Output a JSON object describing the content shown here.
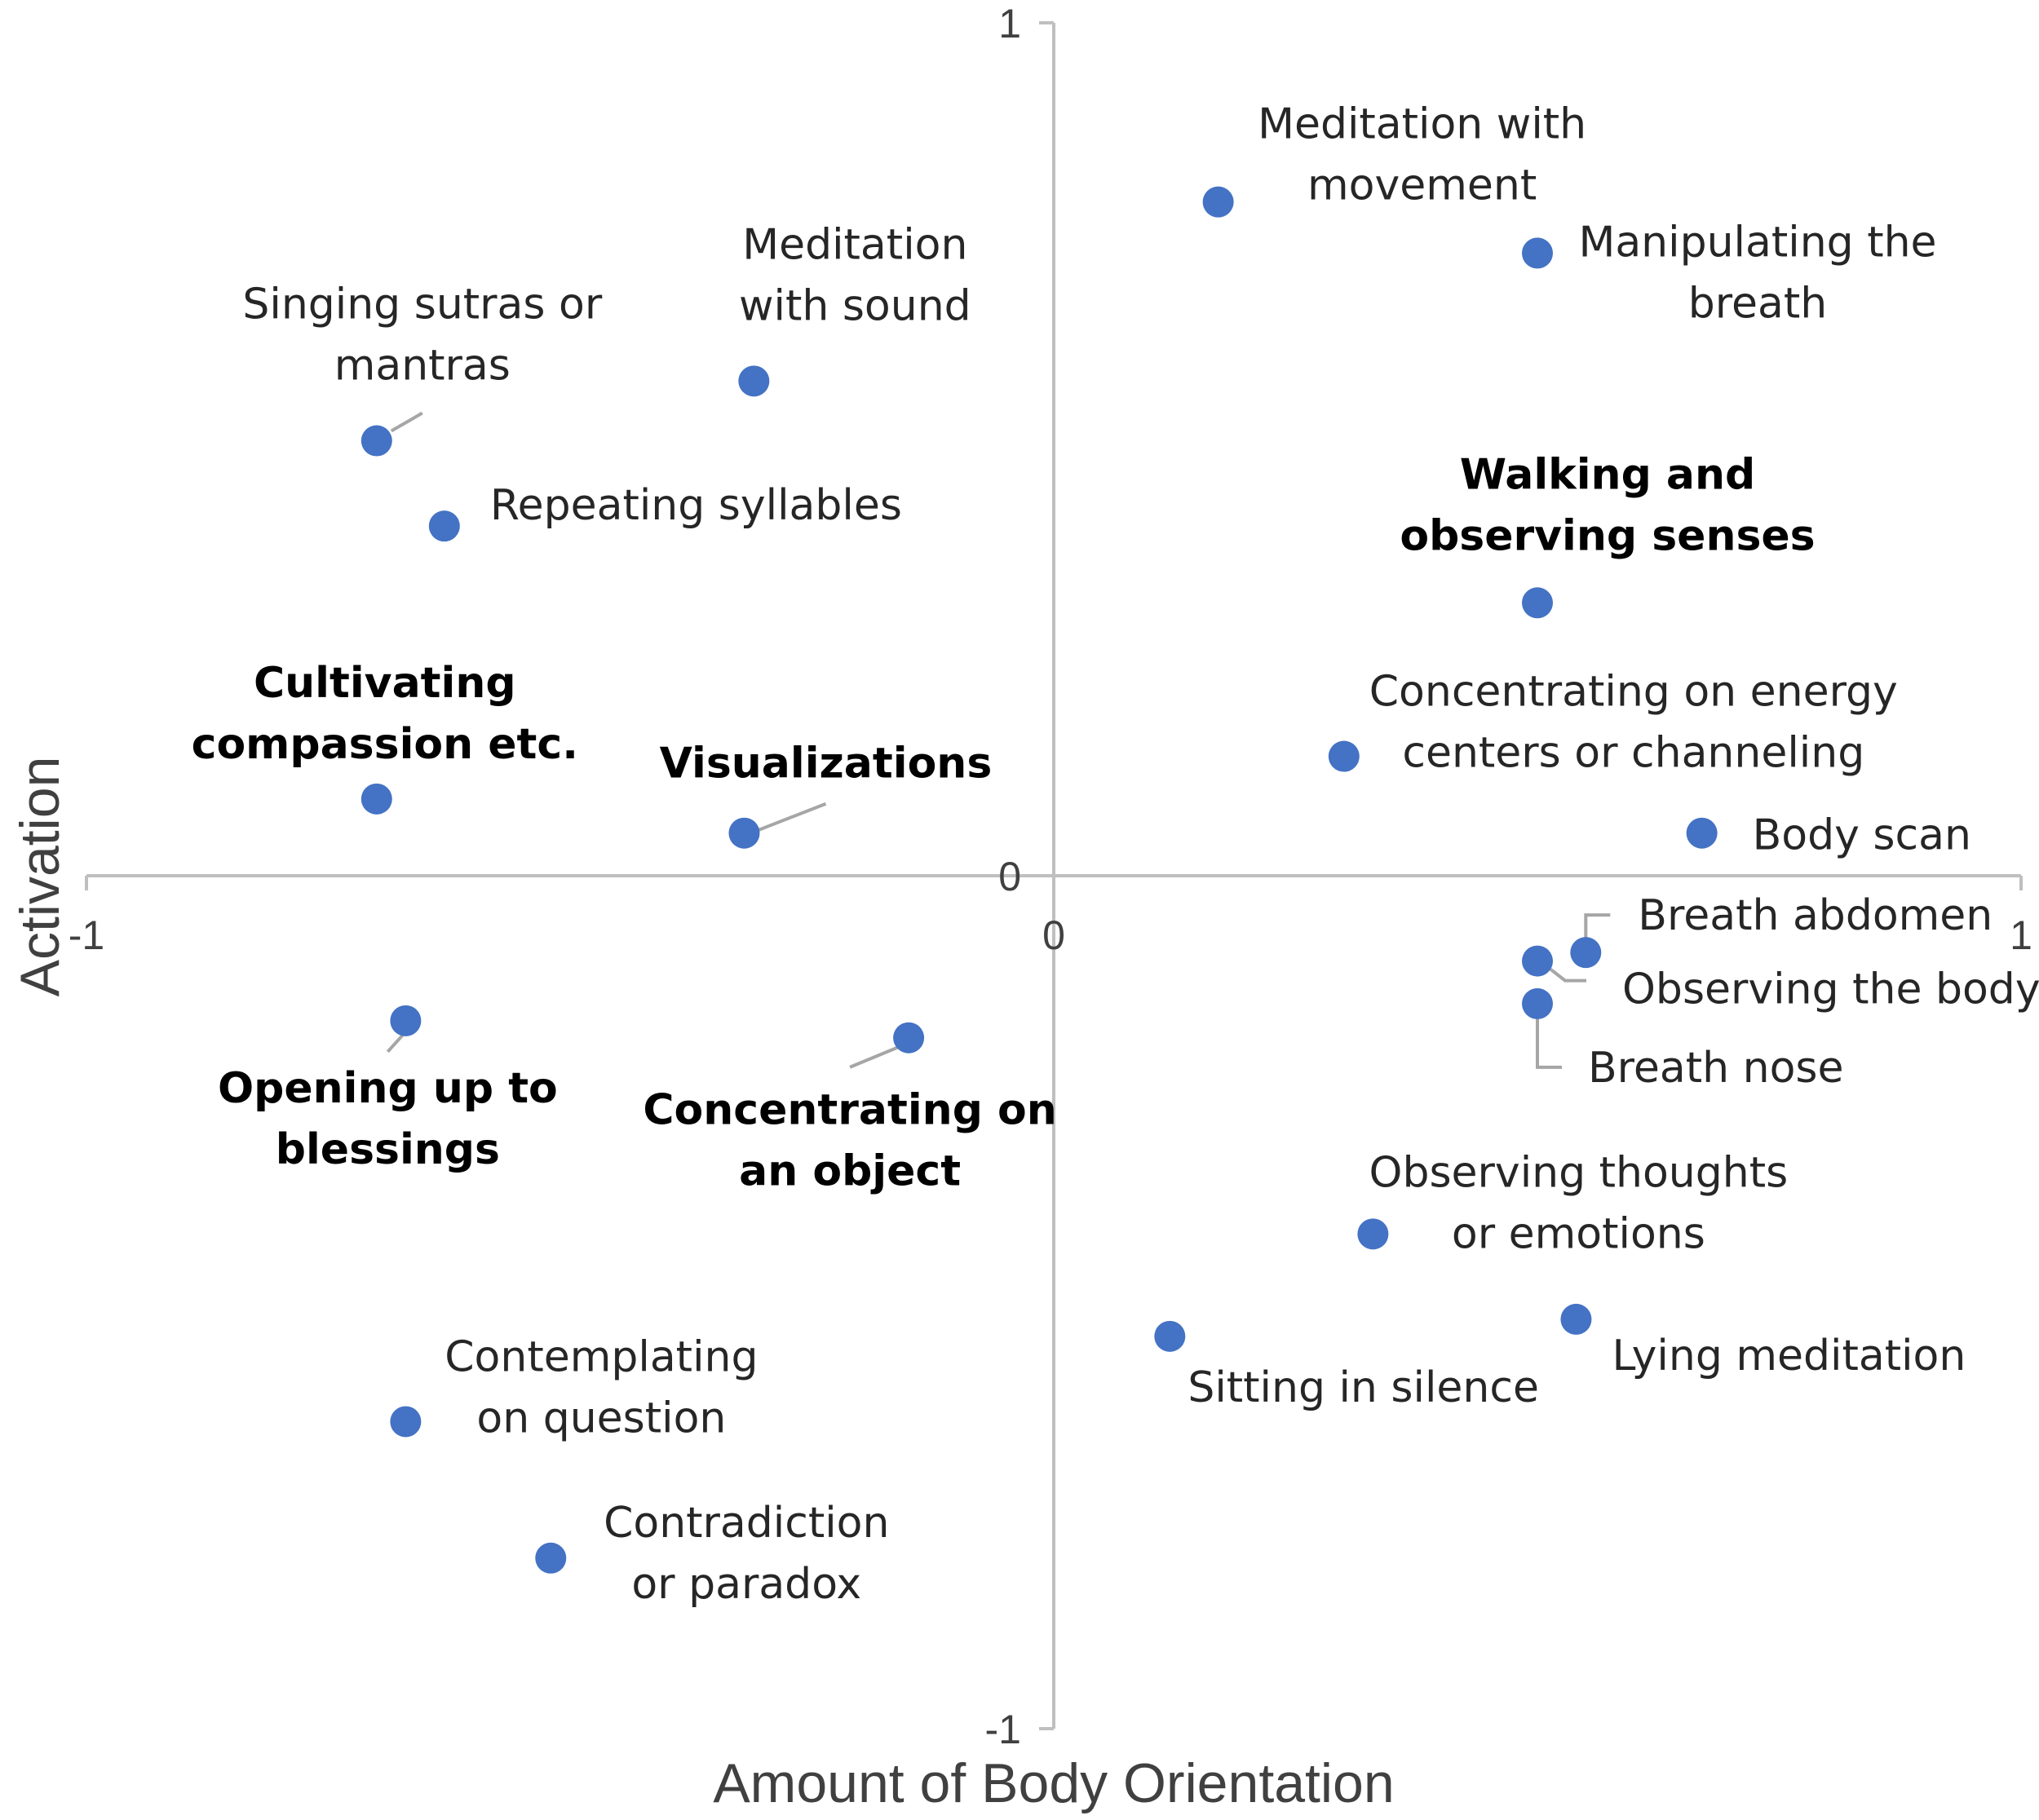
{
  "chart_data": {
    "type": "scatter",
    "title": "",
    "xlabel": "Amount of Body Orientation",
    "ylabel": "Activation",
    "xlim": [
      -1,
      1
    ],
    "ylim": [
      -1,
      1
    ],
    "grid": false,
    "legend": "none",
    "marker_color": "#4472c4",
    "x_ticks": [
      {
        "value": -1,
        "label": "-1"
      },
      {
        "value": 0,
        "label": "0"
      },
      {
        "value": 1,
        "label": "1"
      }
    ],
    "y_ticks": [
      {
        "value": 1,
        "label": "1"
      },
      {
        "value": 0,
        "label": "0"
      },
      {
        "value": -1,
        "label": "-1"
      }
    ],
    "points": [
      {
        "name": "Meditation with movement",
        "x": 0.17,
        "y": 0.79,
        "label_lines": [
          "Meditation with",
          "movement"
        ],
        "bold": false
      },
      {
        "name": "Manipulating the breath",
        "x": 0.5,
        "y": 0.73,
        "label_lines": [
          "Manipulating the",
          "breath"
        ],
        "bold": false
      },
      {
        "name": "Meditation with sound",
        "x": -0.31,
        "y": 0.58,
        "label_lines": [
          "Meditation",
          "with sound"
        ],
        "bold": false
      },
      {
        "name": "Singing sutras or mantras",
        "x": -0.7,
        "y": 0.51,
        "label_lines": [
          "Singing sutras or",
          "mantras"
        ],
        "bold": false
      },
      {
        "name": "Repeating syllables",
        "x": -0.63,
        "y": 0.41,
        "label_lines": [
          "Repeating syllables"
        ],
        "bold": false
      },
      {
        "name": "Walking and observing senses",
        "x": 0.5,
        "y": 0.32,
        "label_lines": [
          "Walking and",
          "observing senses"
        ],
        "bold": true
      },
      {
        "name": "Concentrating on energy centers or channeling",
        "x": 0.3,
        "y": 0.14,
        "label_lines": [
          "Concentrating on energy",
          "centers or channeling"
        ],
        "bold": false
      },
      {
        "name": "Body scan",
        "x": 0.67,
        "y": 0.05,
        "label_lines": [
          "Body scan"
        ],
        "bold": false
      },
      {
        "name": "Cultivating compassion etc.",
        "x": -0.7,
        "y": 0.09,
        "label_lines": [
          "Cultivating",
          "compassion etc."
        ],
        "bold": true
      },
      {
        "name": "Visualizations",
        "x": -0.32,
        "y": 0.05,
        "label_lines": [
          "Visualizations"
        ],
        "bold": true
      },
      {
        "name": "Breath abdomen",
        "x": 0.55,
        "y": -0.09,
        "label_lines": [
          "Breath abdomen"
        ],
        "bold": false
      },
      {
        "name": "Observing the body",
        "x": 0.5,
        "y": -0.1,
        "label_lines": [
          "Observing the body"
        ],
        "bold": false
      },
      {
        "name": "Breath nose",
        "x": 0.5,
        "y": -0.15,
        "label_lines": [
          "Breath nose"
        ],
        "bold": false
      },
      {
        "name": "Opening up to blessings",
        "x": -0.67,
        "y": -0.17,
        "label_lines": [
          "Opening up to",
          "blessings"
        ],
        "bold": true
      },
      {
        "name": "Concentrating on an object",
        "x": -0.15,
        "y": -0.19,
        "label_lines": [
          "Concentrating on",
          "an object"
        ],
        "bold": true
      },
      {
        "name": "Observing thoughts or emotions",
        "x": 0.33,
        "y": -0.42,
        "label_lines": [
          "Observing thoughts",
          "or emotions"
        ],
        "bold": false
      },
      {
        "name": "Sitting in silence",
        "x": 0.12,
        "y": -0.54,
        "label_lines": [
          "Sitting in silence"
        ],
        "bold": false
      },
      {
        "name": "Lying meditation",
        "x": 0.54,
        "y": -0.52,
        "label_lines": [
          "Lying meditation"
        ],
        "bold": false
      },
      {
        "name": "Contemplating on question",
        "x": -0.67,
        "y": -0.64,
        "label_lines": [
          "Contemplating",
          "on question"
        ],
        "bold": false
      },
      {
        "name": "Contradiction or paradox",
        "x": -0.52,
        "y": -0.8,
        "label_lines": [
          "Contradiction",
          "or paradox"
        ],
        "bold": false
      }
    ]
  }
}
